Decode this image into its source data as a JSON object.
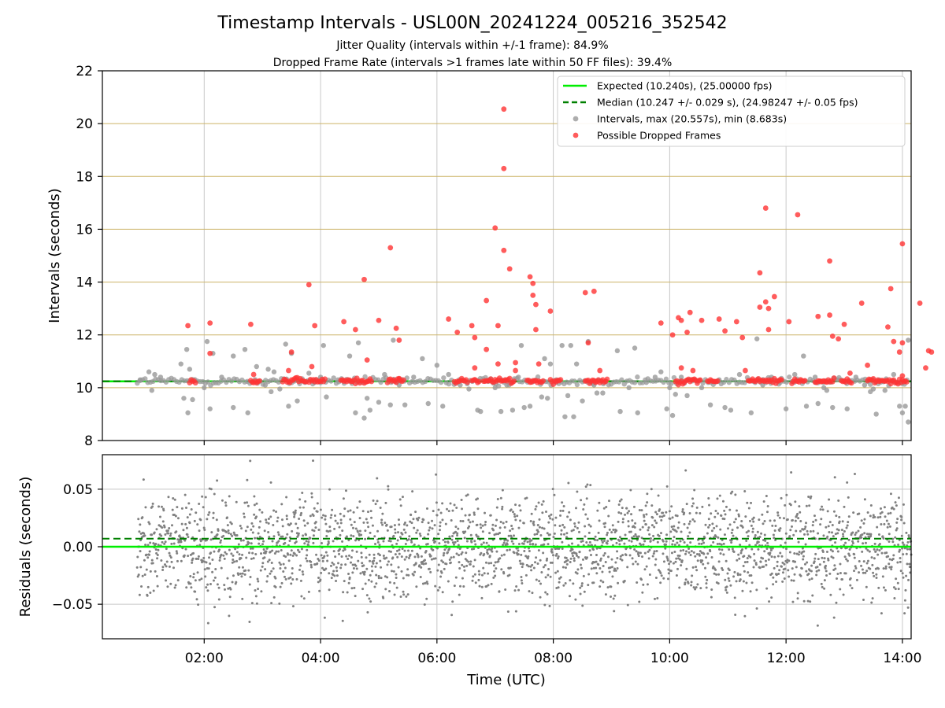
{
  "figure": {
    "title": "Timestamp Intervals - USL00N_20241224_005216_352542",
    "subtitle_1": "Jitter Quality (intervals within +/-1 frame): 84.9%",
    "subtitle_2": "Dropped Frame Rate (intervals >1 frames late within 50 FF files): 39.4%"
  },
  "colors": {
    "expected": "#00ee00",
    "median": "#008000",
    "interval_point": "#999999",
    "dropped_point": "#ff3333",
    "residual_point": "#808080",
    "top_grid": "#ccb366",
    "grid": "#c8c8c8"
  },
  "chart_data": [
    {
      "type": "scatter",
      "title": "",
      "xlabel": "",
      "ylabel": "Intervals (seconds)",
      "x_unit": "hours UTC",
      "xlim": [
        0.25,
        14.15
      ],
      "ylim": [
        8,
        22
      ],
      "x_ticks": [
        2,
        4,
        6,
        8,
        10,
        12,
        14
      ],
      "x_ticklabels_shown": false,
      "y_ticks": [
        8,
        10,
        12,
        14,
        16,
        18,
        20,
        22
      ],
      "y_ticklabels": [
        "8",
        "10",
        "12",
        "14",
        "16",
        "18",
        "20",
        "22"
      ],
      "grid": "vertical gray at x ticks; horizontal tan at y ticks",
      "legend_position": "top-right",
      "reference_lines": [
        {
          "name": "Expected (10.240s), (25.00000 fps)",
          "y": 10.24,
          "style": "solid",
          "color": "#00ee00"
        },
        {
          "name": "Median (10.247 +/- 0.029 s), (24.98247 +/- 0.05 fps)",
          "y": 10.247,
          "style": "dashed",
          "color": "#008000"
        }
      ],
      "series": [
        {
          "name": "Intervals, max (20.557s), min (8.683s)",
          "color": "#999999",
          "points": [
            [
              0.9,
              10.3
            ],
            [
              1.05,
              10.6
            ],
            [
              1.1,
              9.9
            ],
            [
              1.15,
              10.5
            ],
            [
              1.25,
              10.4
            ],
            [
              1.6,
              10.9
            ],
            [
              1.65,
              9.6
            ],
            [
              1.7,
              11.45
            ],
            [
              1.72,
              9.05
            ],
            [
              1.75,
              10.7
            ],
            [
              1.8,
              9.55
            ],
            [
              2.0,
              10.0
            ],
            [
              2.05,
              11.75
            ],
            [
              2.1,
              9.2
            ],
            [
              2.15,
              11.3
            ],
            [
              2.3,
              10.4
            ],
            [
              2.5,
              11.2
            ],
            [
              2.5,
              9.25
            ],
            [
              2.7,
              11.45
            ],
            [
              2.75,
              9.05
            ],
            [
              2.9,
              10.8
            ],
            [
              3.05,
              10.1
            ],
            [
              3.1,
              10.7
            ],
            [
              3.15,
              9.85
            ],
            [
              3.2,
              10.6
            ],
            [
              3.3,
              9.95
            ],
            [
              3.4,
              11.65
            ],
            [
              3.45,
              9.3
            ],
            [
              3.5,
              11.3
            ],
            [
              3.6,
              9.5
            ],
            [
              3.8,
              10.55
            ],
            [
              3.9,
              10.2
            ],
            [
              4.0,
              10.4
            ],
            [
              4.05,
              11.6
            ],
            [
              4.1,
              9.65
            ],
            [
              4.3,
              10.3
            ],
            [
              4.5,
              11.2
            ],
            [
              4.6,
              9.05
            ],
            [
              4.65,
              11.7
            ],
            [
              4.75,
              8.85
            ],
            [
              4.8,
              9.6
            ],
            [
              4.85,
              9.15
            ],
            [
              5.0,
              9.45
            ],
            [
              5.1,
              10.5
            ],
            [
              5.2,
              9.35
            ],
            [
              5.25,
              11.8
            ],
            [
              5.35,
              10.1
            ],
            [
              5.45,
              9.35
            ],
            [
              5.6,
              10.4
            ],
            [
              5.75,
              11.1
            ],
            [
              5.85,
              9.4
            ],
            [
              6.0,
              10.85
            ],
            [
              6.1,
              9.3
            ],
            [
              6.2,
              10.5
            ],
            [
              6.4,
              10.1
            ],
            [
              6.55,
              9.95
            ],
            [
              6.7,
              9.15
            ],
            [
              6.75,
              9.1
            ],
            [
              6.9,
              10.3
            ],
            [
              7.0,
              10.0
            ],
            [
              7.1,
              9.1
            ],
            [
              7.2,
              10.1
            ],
            [
              7.3,
              9.15
            ],
            [
              7.4,
              10.4
            ],
            [
              7.45,
              11.6
            ],
            [
              7.5,
              9.25
            ],
            [
              7.6,
              9.3
            ],
            [
              7.8,
              9.65
            ],
            [
              7.85,
              11.1
            ],
            [
              7.9,
              9.6
            ],
            [
              7.95,
              10.9
            ],
            [
              8.05,
              10.3
            ],
            [
              8.15,
              11.6
            ],
            [
              8.2,
              8.9
            ],
            [
              8.25,
              9.7
            ],
            [
              8.3,
              11.6
            ],
            [
              8.35,
              8.9
            ],
            [
              8.4,
              10.9
            ],
            [
              8.5,
              9.5
            ],
            [
              8.6,
              11.75
            ],
            [
              8.7,
              10.1
            ],
            [
              8.75,
              9.8
            ],
            [
              8.85,
              9.8
            ],
            [
              9.1,
              11.4
            ],
            [
              9.15,
              9.1
            ],
            [
              9.3,
              10.0
            ],
            [
              9.4,
              11.5
            ],
            [
              9.45,
              9.05
            ],
            [
              9.6,
              10.2
            ],
            [
              9.75,
              10.4
            ],
            [
              9.85,
              10.6
            ],
            [
              9.95,
              9.2
            ],
            [
              10.0,
              10.0
            ],
            [
              10.05,
              8.95
            ],
            [
              10.1,
              9.75
            ],
            [
              10.2,
              10.4
            ],
            [
              10.3,
              9.7
            ],
            [
              10.55,
              10.0
            ],
            [
              10.7,
              9.35
            ],
            [
              10.85,
              10.3
            ],
            [
              10.95,
              9.25
            ],
            [
              11.05,
              9.15
            ],
            [
              11.2,
              10.5
            ],
            [
              11.4,
              9.05
            ],
            [
              11.5,
              11.85
            ],
            [
              11.6,
              10.1
            ],
            [
              11.75,
              10.4
            ],
            [
              11.9,
              10.2
            ],
            [
              12.0,
              9.2
            ],
            [
              12.15,
              10.5
            ],
            [
              12.3,
              11.2
            ],
            [
              12.35,
              9.3
            ],
            [
              12.5,
              10.4
            ],
            [
              12.55,
              9.4
            ],
            [
              12.65,
              10.0
            ],
            [
              12.7,
              9.9
            ],
            [
              12.8,
              9.25
            ],
            [
              12.9,
              10.3
            ],
            [
              13.05,
              9.2
            ],
            [
              13.2,
              10.4
            ],
            [
              13.35,
              10.1
            ],
            [
              13.45,
              9.85
            ],
            [
              13.5,
              9.95
            ],
            [
              13.55,
              9.0
            ],
            [
              13.6,
              10.3
            ],
            [
              13.7,
              9.9
            ],
            [
              13.85,
              10.5
            ],
            [
              13.95,
              9.3
            ],
            [
              14.0,
              9.05
            ],
            [
              14.05,
              9.3
            ],
            [
              14.1,
              8.7
            ],
            [
              14.1,
              11.8
            ]
          ]
        },
        {
          "name": "Possible Dropped Frames",
          "color": "#ff3333",
          "points": [
            [
              1.72,
              12.35
            ],
            [
              2.1,
              12.45
            ],
            [
              2.1,
              11.3
            ],
            [
              2.8,
              12.4
            ],
            [
              2.85,
              10.5
            ],
            [
              3.45,
              10.65
            ],
            [
              3.5,
              11.35
            ],
            [
              3.8,
              13.9
            ],
            [
              3.85,
              10.8
            ],
            [
              3.9,
              12.35
            ],
            [
              4.4,
              12.5
            ],
            [
              4.6,
              12.2
            ],
            [
              4.75,
              14.1
            ],
            [
              4.8,
              11.05
            ],
            [
              5.0,
              12.55
            ],
            [
              5.2,
              15.3
            ],
            [
              5.3,
              12.25
            ],
            [
              5.35,
              11.8
            ],
            [
              5.35,
              10.35
            ],
            [
              6.2,
              12.6
            ],
            [
              6.35,
              12.1
            ],
            [
              6.6,
              12.35
            ],
            [
              6.65,
              11.9
            ],
            [
              6.65,
              10.75
            ],
            [
              6.85,
              13.3
            ],
            [
              6.85,
              11.45
            ],
            [
              7.0,
              16.05
            ],
            [
              7.05,
              12.35
            ],
            [
              7.05,
              10.9
            ],
            [
              7.15,
              20.55
            ],
            [
              7.15,
              18.3
            ],
            [
              7.15,
              15.2
            ],
            [
              7.25,
              14.5
            ],
            [
              7.35,
              10.95
            ],
            [
              7.35,
              10.65
            ],
            [
              7.6,
              14.2
            ],
            [
              7.65,
              13.95
            ],
            [
              7.65,
              13.5
            ],
            [
              7.7,
              13.15
            ],
            [
              7.7,
              12.2
            ],
            [
              7.75,
              10.9
            ],
            [
              7.95,
              12.9
            ],
            [
              8.55,
              13.6
            ],
            [
              8.6,
              11.7
            ],
            [
              8.7,
              13.65
            ],
            [
              8.8,
              10.65
            ],
            [
              9.85,
              12.45
            ],
            [
              10.05,
              12.0
            ],
            [
              10.15,
              12.65
            ],
            [
              10.2,
              12.55
            ],
            [
              10.2,
              10.75
            ],
            [
              10.3,
              12.1
            ],
            [
              10.35,
              12.85
            ],
            [
              10.4,
              10.65
            ],
            [
              10.55,
              12.55
            ],
            [
              10.85,
              12.6
            ],
            [
              10.95,
              12.15
            ],
            [
              11.15,
              12.5
            ],
            [
              11.25,
              11.9
            ],
            [
              11.3,
              10.65
            ],
            [
              11.55,
              14.35
            ],
            [
              11.55,
              13.05
            ],
            [
              11.65,
              13.25
            ],
            [
              11.7,
              13.0
            ],
            [
              11.7,
              12.2
            ],
            [
              11.65,
              16.8
            ],
            [
              11.8,
              13.45
            ],
            [
              12.05,
              12.5
            ],
            [
              12.2,
              16.55
            ],
            [
              12.55,
              12.7
            ],
            [
              12.75,
              12.75
            ],
            [
              12.75,
              14.8
            ],
            [
              12.8,
              11.95
            ],
            [
              12.9,
              11.85
            ],
            [
              13.0,
              12.4
            ],
            [
              13.1,
              10.55
            ],
            [
              13.3,
              13.2
            ],
            [
              13.4,
              10.85
            ],
            [
              13.75,
              12.3
            ],
            [
              13.8,
              13.75
            ],
            [
              13.85,
              11.75
            ],
            [
              13.95,
              11.35
            ],
            [
              14.0,
              11.7
            ],
            [
              14.0,
              10.45
            ],
            [
              14.0,
              15.45
            ],
            [
              14.3,
              13.2
            ],
            [
              14.4,
              10.75
            ],
            [
              14.45,
              11.4
            ],
            [
              14.5,
              11.35
            ]
          ],
          "baseline_runs": [
            [
              1.75,
              1.85
            ],
            [
              2.8,
              2.95
            ],
            [
              3.35,
              3.75
            ],
            [
              3.8,
              4.1
            ],
            [
              4.35,
              4.9
            ],
            [
              5.15,
              5.45
            ],
            [
              6.3,
              6.55
            ],
            [
              6.6,
              6.75
            ],
            [
              6.8,
              7.35
            ],
            [
              7.55,
              7.85
            ],
            [
              7.95,
              8.15
            ],
            [
              8.55,
              8.95
            ],
            [
              10.1,
              10.55
            ],
            [
              10.65,
              10.85
            ],
            [
              11.35,
              11.95
            ],
            [
              12.1,
              12.35
            ],
            [
              12.5,
              12.85
            ],
            [
              12.95,
              13.15
            ],
            [
              13.4,
              14.1
            ]
          ]
        }
      ]
    },
    {
      "type": "scatter",
      "title": "",
      "xlabel": "Time (UTC)",
      "ylabel": "Residuals (seconds)",
      "x_unit": "hours UTC",
      "xlim": [
        0.25,
        14.15
      ],
      "ylim": [
        -0.08,
        0.08
      ],
      "x_ticks": [
        2,
        4,
        6,
        8,
        10,
        12,
        14
      ],
      "x_ticklabels": [
        "02:00",
        "04:00",
        "06:00",
        "08:00",
        "10:00",
        "12:00",
        "14:00"
      ],
      "y_ticks": [
        -0.05,
        0.0,
        0.05
      ],
      "y_ticklabels": [
        "−0.05",
        "0.00",
        "0.05"
      ],
      "grid": "gray on both axes",
      "reference_lines": [
        {
          "name": "Expected",
          "y": 0.0,
          "style": "solid",
          "color": "#00ee00"
        },
        {
          "name": "Median",
          "y": 0.007,
          "style": "dashed",
          "color": "#008000"
        }
      ],
      "series": [
        {
          "name": "Residuals",
          "color": "#808080",
          "x_range": [
            0.85,
            14.15
          ],
          "center": 0.0,
          "spread_sd": 0.022
        }
      ]
    }
  ]
}
